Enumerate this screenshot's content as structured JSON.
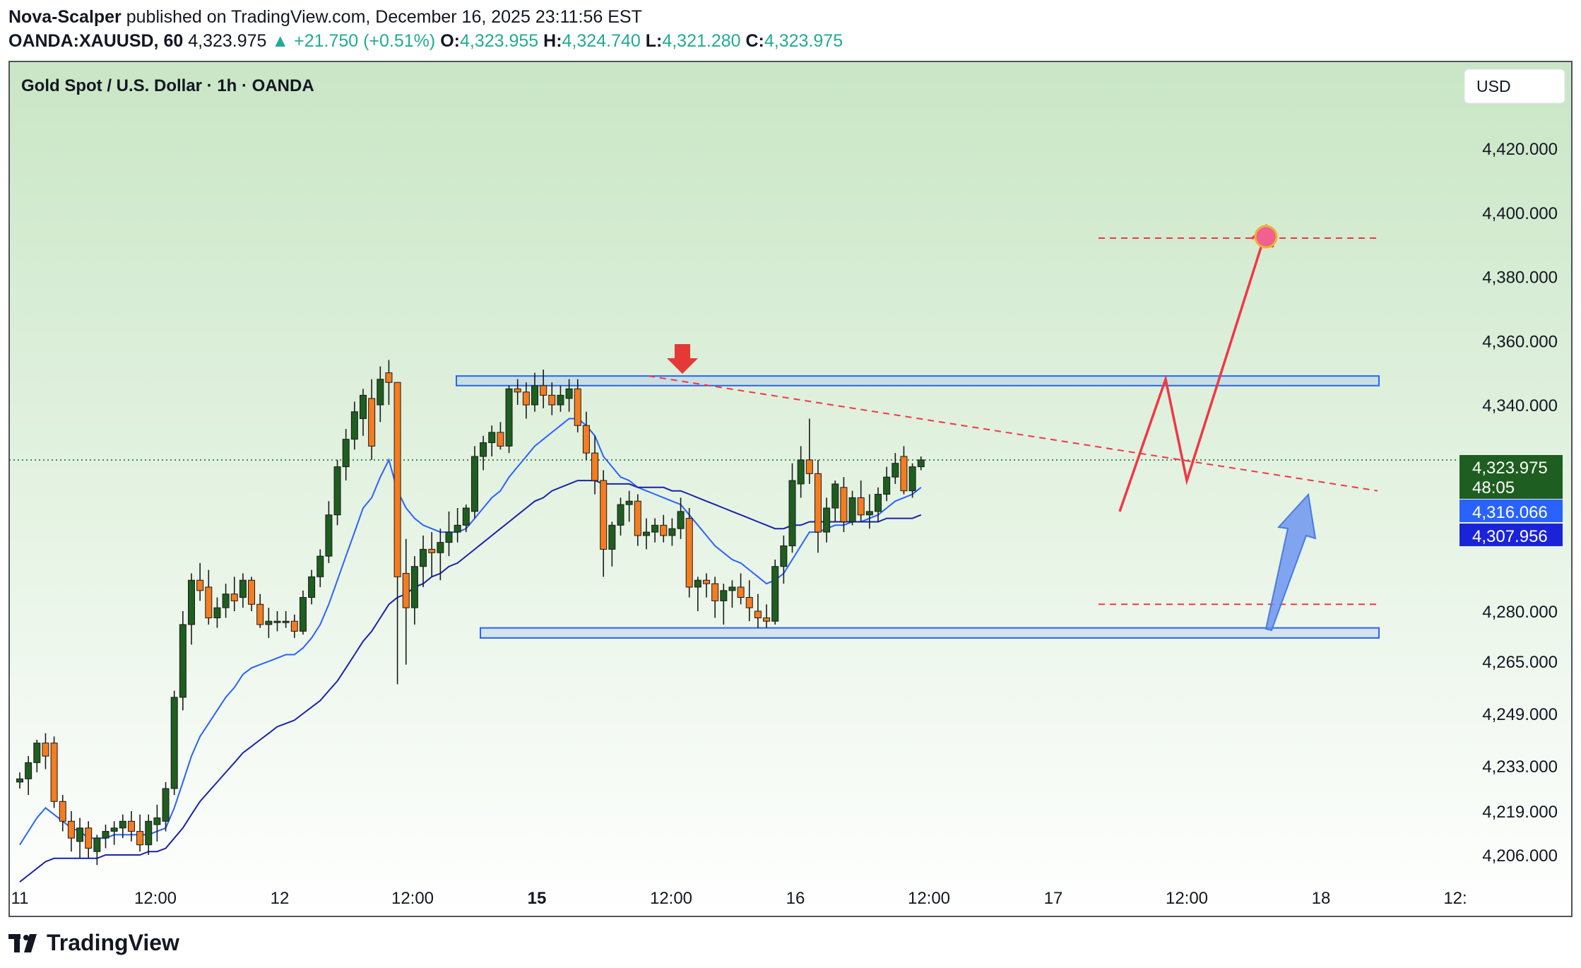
{
  "header": {
    "author": "Nova-Scalper",
    "published_text": "published on TradingView.com, December 16, 2025 23:11:56 EST",
    "symbol_line": "OANDA:XAUUSD, 60",
    "last_price": "4,323.975",
    "change": "+21.750 (+0.51%)",
    "o_label": "O:",
    "o": "4,323.955",
    "h_label": "H:",
    "h": "4,324.740",
    "l_label": "L:",
    "l": "4,321.280",
    "c_label": "C:",
    "c": "4,323.975"
  },
  "chart_title": "Gold Spot / U.S. Dollar · 1h · OANDA",
  "currency_button": "USD",
  "footer": {
    "logo_text": "TradingView"
  },
  "colors": {
    "bg_top": "#c9e6c5",
    "bg_bottom": "#ffffff",
    "bull": "#1e5e20",
    "bear": "#f57c1f",
    "ema_fast": "#2962ff",
    "ema_slow": "#1a23a8",
    "zone": "#2962ff",
    "projection": "#f23645",
    "arrow_blue": "#6d95f0"
  },
  "chart_data": {
    "type": "candlestick",
    "title": "Gold Spot / U.S. Dollar · 1h · OANDA",
    "y_ticks": [
      "4,420.000",
      "4,400.000",
      "4,380.000",
      "4,360.000",
      "4,340.000",
      "4,280.000",
      "4,265.000",
      "4,249.000",
      "4,233.000",
      "4,219.000",
      "4,206.000"
    ],
    "y_tick_values": [
      4420,
      4400,
      4380,
      4360,
      4340,
      4280,
      4265,
      4249,
      4233,
      4219,
      4206
    ],
    "x_ticks": [
      "11",
      "12:00",
      "12",
      "12:00",
      "15",
      "12:00",
      "16",
      "12:00",
      "17",
      "12:00",
      "18",
      "12:"
    ],
    "x_tick_bold": [
      false,
      false,
      false,
      false,
      true,
      false,
      false,
      false,
      false,
      false,
      false,
      false
    ],
    "price_labels": [
      {
        "text": "4,323.975",
        "sub": "48:05",
        "kind": "last"
      },
      {
        "text": "4,316.066",
        "kind": "ema_fast"
      },
      {
        "text": "4,307.956",
        "kind": "ema_slow"
      }
    ],
    "last_price": 4323.975,
    "candles": [
      [
        4228,
        4231,
        4226,
        4229
      ],
      [
        4229,
        4236,
        4224,
        4234
      ],
      [
        4234,
        4241,
        4231,
        4240
      ],
      [
        4240,
        4243,
        4232,
        4236
      ],
      [
        4240,
        4242,
        4220,
        4222
      ],
      [
        4222,
        4224,
        4213,
        4216
      ],
      [
        4216,
        4219,
        4207,
        4211
      ],
      [
        4210,
        4217,
        4205,
        4214
      ],
      [
        4214,
        4216,
        4205,
        4208
      ],
      [
        4207,
        4212,
        4203,
        4211
      ],
      [
        4211,
        4215,
        4208,
        4213
      ],
      [
        4213,
        4216,
        4209,
        4214
      ],
      [
        4214,
        4218,
        4211,
        4216
      ],
      [
        4216,
        4219,
        4210,
        4213
      ],
      [
        4213,
        4218,
        4207,
        4209
      ],
      [
        4209,
        4218,
        4206,
        4216
      ],
      [
        4215,
        4221,
        4210,
        4217
      ],
      [
        4216,
        4228,
        4213,
        4226
      ],
      [
        4226,
        4256,
        4224,
        4254
      ],
      [
        4254,
        4280,
        4250,
        4276
      ],
      [
        4276,
        4291,
        4270,
        4289
      ],
      [
        4289,
        4294,
        4283,
        4286
      ],
      [
        4287,
        4292,
        4276,
        4278
      ],
      [
        4278,
        4284,
        4275,
        4281
      ],
      [
        4281,
        4288,
        4278,
        4285
      ],
      [
        4285,
        4290,
        4280,
        4283
      ],
      [
        4284,
        4291,
        4281,
        4289
      ],
      [
        4289,
        4290,
        4280,
        4282
      ],
      [
        4282,
        4285,
        4275,
        4276
      ],
      [
        4276,
        4281,
        4272,
        4277
      ],
      [
        4277,
        4280,
        4274,
        4277
      ],
      [
        4277,
        4280,
        4275,
        4277
      ],
      [
        4277,
        4279,
        4272,
        4274
      ],
      [
        4274,
        4286,
        4273,
        4284
      ],
      [
        4284,
        4292,
        4282,
        4290
      ],
      [
        4290,
        4298,
        4287,
        4296
      ],
      [
        4296,
        4312,
        4294,
        4308
      ],
      [
        4308,
        4324,
        4305,
        4322
      ],
      [
        4322,
        4333,
        4318,
        4330
      ],
      [
        4330,
        4341,
        4327,
        4338
      ],
      [
        4336,
        4345,
        4331,
        4343
      ],
      [
        4342,
        4348,
        4324,
        4328
      ],
      [
        4340,
        4352,
        4335,
        4348
      ],
      [
        4350,
        4354,
        4340,
        4347
      ],
      [
        4347,
        4347,
        4258,
        4290
      ],
      [
        4291,
        4301,
        4264,
        4281
      ],
      [
        4281,
        4296,
        4276,
        4293
      ],
      [
        4293,
        4302,
        4287,
        4298
      ],
      [
        4298,
        4303,
        4290,
        4297
      ],
      [
        4297,
        4304,
        4289,
        4300
      ],
      [
        4300,
        4309,
        4296,
        4303
      ],
      [
        4303,
        4310,
        4300,
        4305
      ],
      [
        4305,
        4311,
        4303,
        4310
      ],
      [
        4309,
        4328,
        4307,
        4325
      ],
      [
        4325,
        4331,
        4321,
        4329
      ],
      [
        4329,
        4334,
        4325,
        4332
      ],
      [
        4332,
        4335,
        4327,
        4328
      ],
      [
        4328,
        4346,
        4326,
        4345
      ],
      [
        4345,
        4348,
        4340,
        4344
      ],
      [
        4344,
        4347,
        4336,
        4340
      ],
      [
        4340,
        4350,
        4338,
        4346
      ],
      [
        4346,
        4351,
        4339,
        4343
      ],
      [
        4343,
        4347,
        4337,
        4340
      ],
      [
        4340,
        4346,
        4338,
        4343
      ],
      [
        4342,
        4348,
        4338,
        4345
      ],
      [
        4345,
        4348,
        4332,
        4334
      ],
      [
        4334,
        4338,
        4324,
        4326
      ],
      [
        4326,
        4331,
        4314,
        4318
      ],
      [
        4318,
        4321,
        4290,
        4298
      ],
      [
        4298,
        4306,
        4293,
        4305
      ],
      [
        4305,
        4313,
        4302,
        4311
      ],
      [
        4311,
        4315,
        4306,
        4312
      ],
      [
        4312,
        4314,
        4299,
        4302
      ],
      [
        4302,
        4307,
        4298,
        4303
      ],
      [
        4303,
        4307,
        4300,
        4305
      ],
      [
        4305,
        4308,
        4300,
        4302
      ],
      [
        4302,
        4307,
        4299,
        4304
      ],
      [
        4304,
        4313,
        4301,
        4309
      ],
      [
        4307,
        4310,
        4284,
        4287
      ],
      [
        4287,
        4290,
        4280,
        4289
      ],
      [
        4289,
        4291,
        4284,
        4288
      ],
      [
        4288,
        4290,
        4278,
        4283
      ],
      [
        4283,
        4288,
        4276,
        4286
      ],
      [
        4286,
        4289,
        4281,
        4287
      ],
      [
        4287,
        4291,
        4282,
        4284
      ],
      [
        4284,
        4289,
        4277,
        4281
      ],
      [
        4280,
        4285,
        4275,
        4278
      ],
      [
        4278,
        4282,
        4275,
        4277
      ],
      [
        4277,
        4295,
        4276,
        4293
      ],
      [
        4293,
        4302,
        4288,
        4299
      ],
      [
        4299,
        4323,
        4297,
        4318
      ],
      [
        4317,
        4328,
        4313,
        4324
      ],
      [
        4324,
        4336,
        4317,
        4320
      ],
      [
        4320,
        4324,
        4297,
        4303
      ],
      [
        4303,
        4313,
        4300,
        4310
      ],
      [
        4310,
        4318,
        4306,
        4317
      ],
      [
        4316,
        4319,
        4303,
        4306
      ],
      [
        4306,
        4315,
        4305,
        4313
      ],
      [
        4313,
        4318,
        4306,
        4308
      ],
      [
        4308,
        4314,
        4304,
        4309
      ],
      [
        4309,
        4316,
        4306,
        4314
      ],
      [
        4314,
        4322,
        4312,
        4319
      ],
      [
        4319,
        4326,
        4317,
        4323
      ],
      [
        4325,
        4328,
        4314,
        4315
      ],
      [
        4315,
        4323,
        4313,
        4322
      ],
      [
        4322,
        4325,
        4321,
        4324
      ]
    ],
    "ema_fast": [
      4209,
      4213,
      4217,
      4220,
      4218,
      4216,
      4214,
      4213,
      4211,
      4211,
      4211,
      4212,
      4212,
      4212,
      4212,
      4212,
      4213,
      4214,
      4220,
      4228,
      4236,
      4242,
      4246,
      4250,
      4254,
      4257,
      4261,
      4263,
      4264,
      4265,
      4266,
      4267,
      4267,
      4269,
      4272,
      4276,
      4282,
      4289,
      4296,
      4303,
      4310,
      4313,
      4319,
      4324,
      4315,
      4310,
      4307,
      4305,
      4304,
      4303,
      4303,
      4303,
      4304,
      4307,
      4310,
      4313,
      4315,
      4319,
      4322,
      4325,
      4328,
      4330,
      4332,
      4334,
      4336,
      4336,
      4334,
      4331,
      4325,
      4322,
      4319,
      4318,
      4316,
      4315,
      4314,
      4313,
      4312,
      4311,
      4308,
      4305,
      4302,
      4299,
      4297,
      4295,
      4294,
      4292,
      4290,
      4288,
      4289,
      4291,
      4295,
      4299,
      4303,
      4303,
      4304,
      4305,
      4305,
      4306,
      4306,
      4307,
      4308,
      4310,
      4312,
      4313,
      4314,
      4316
    ],
    "ema_slow": [
      4198,
      4200,
      4202,
      4204,
      4205,
      4205,
      4205,
      4205,
      4205,
      4205,
      4206,
      4206,
      4206,
      4206,
      4206,
      4207,
      4207,
      4208,
      4211,
      4214,
      4218,
      4222,
      4225,
      4228,
      4231,
      4234,
      4237,
      4239,
      4241,
      4243,
      4245,
      4246,
      4247,
      4249,
      4251,
      4253,
      4256,
      4259,
      4263,
      4267,
      4271,
      4274,
      4278,
      4282,
      4284,
      4285,
      4287,
      4288,
      4290,
      4291,
      4293,
      4294,
      4296,
      4298,
      4300,
      4302,
      4304,
      4306,
      4308,
      4310,
      4312,
      4313,
      4315,
      4316,
      4317,
      4318,
      4318,
      4318,
      4317,
      4317,
      4317,
      4317,
      4316,
      4316,
      4316,
      4316,
      4315,
      4315,
      4314,
      4313,
      4312,
      4311,
      4310,
      4309,
      4308,
      4307,
      4306,
      4305,
      4304,
      4304,
      4305,
      4305,
      4306,
      4306,
      4306,
      4306,
      4306,
      4306,
      4306,
      4306,
      4306,
      4307,
      4307,
      4307,
      4307,
      4308
    ],
    "annotations": {
      "resistance_zone": [
        4346,
        4349
      ],
      "support_zone": [
        4272,
        4275
      ],
      "target_level": 4392,
      "lower_level": 4282,
      "projection_path": [
        4309,
        4348,
        4318,
        4394
      ]
    }
  }
}
